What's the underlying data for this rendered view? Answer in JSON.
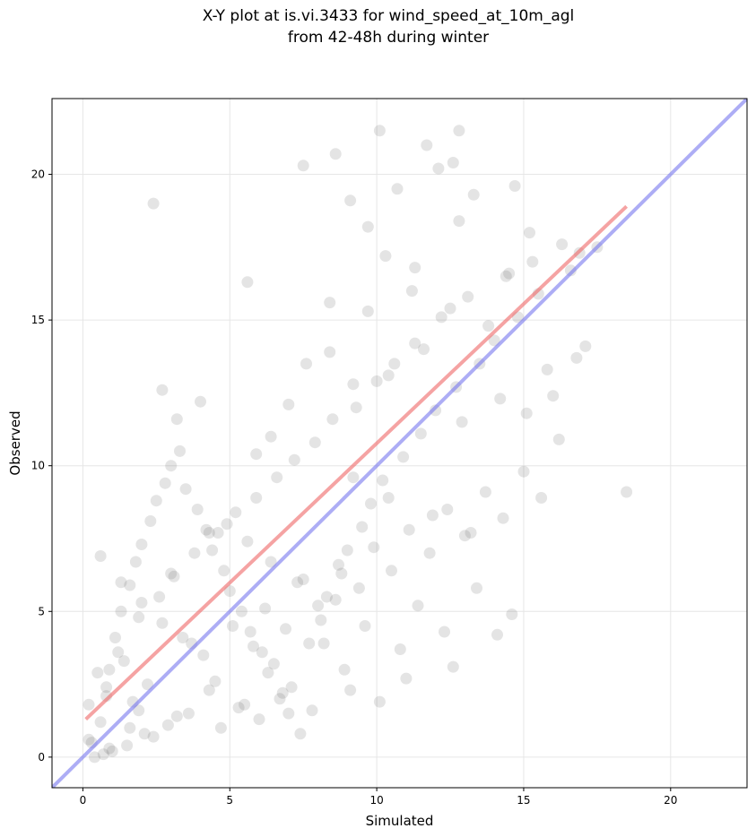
{
  "chart_data": {
    "type": "scatter",
    "title": [
      "X-Y plot at is.vi.3433 for wind_speed_at_10m_agl",
      "from 42-48h during winter"
    ],
    "xlabel": "Simulated",
    "ylabel": "Observed",
    "xlim": [
      -1.05,
      22.6
    ],
    "ylim": [
      -1.05,
      22.6
    ],
    "xticks": [
      0,
      5,
      10,
      15,
      20
    ],
    "yticks": [
      0,
      5,
      10,
      15,
      20
    ],
    "grid": true,
    "point_color": "#555555",
    "lines": [
      {
        "role": "regression",
        "color": "#ee6666",
        "x": [
          0.1,
          18.5
        ],
        "y": [
          1.3,
          18.9
        ]
      },
      {
        "role": "one-to-one",
        "color": "#7777ee",
        "x": [
          -1.05,
          22.6
        ],
        "y": [
          -1.05,
          22.6
        ]
      }
    ],
    "points": {
      "x": [
        2.4,
        12.8,
        11.7,
        12.6,
        8.6,
        7.5,
        10.1,
        9.1,
        12.1,
        13.3,
        17.5,
        15.3,
        9.7,
        10.7,
        5.6,
        8.4,
        10.3,
        11.2,
        12.5,
        13.8,
        14.4,
        16.0,
        16.8,
        2.7,
        3.2,
        4.0,
        6.4,
        7.6,
        9.2,
        10.4,
        11.6,
        12.9,
        14.2,
        15.8,
        17.1,
        18.5,
        4.3,
        3.6,
        2.1,
        1.5,
        1.0,
        0.7,
        0.3,
        0.2,
        0.5,
        1.2,
        1.9,
        2.6,
        3.1,
        3.8,
        4.6,
        5.2,
        5.9,
        6.6,
        7.2,
        7.9,
        8.5,
        9.3,
        10.0,
        10.6,
        11.3,
        12.2,
        13.1,
        14.5,
        15.2,
        16.3,
        0.4,
        0.6,
        0.8,
        0.9,
        1.1,
        1.3,
        1.6,
        1.8,
        2.0,
        2.3,
        2.5,
        2.8,
        3.0,
        3.3,
        3.5,
        3.9,
        4.2,
        4.4,
        4.8,
        5.0,
        5.4,
        5.7,
        6.1,
        6.3,
        6.8,
        7.0,
        7.4,
        7.7,
        8.1,
        8.3,
        8.8,
        9.0,
        9.5,
        9.8,
        10.2,
        10.9,
        11.5,
        12.0,
        12.7,
        13.5,
        14.0,
        14.8,
        15.5,
        16.6,
        1.4,
        2.2,
        3.4,
        4.1,
        5.1,
        5.8,
        6.2,
        6.9,
        7.3,
        8.0,
        8.7,
        9.4,
        9.9,
        10.5,
        11.1,
        11.8,
        12.4,
        13.0,
        13.7,
        14.3,
        15.0,
        15.6,
        1.7,
        2.9,
        4.5,
        5.5,
        6.5,
        7.1,
        8.2,
        8.9,
        9.6,
        10.8,
        11.4,
        12.3,
        13.4,
        14.6,
        0.2,
        0.9,
        1.6,
        2.4,
        3.2,
        4.7,
        5.3,
        6.0,
        6.7,
        7.8,
        9.1,
        10.1,
        11.0,
        12.6,
        14.1,
        0.6,
        1.3,
        2.0,
        2.7,
        3.7,
        4.9,
        5.6,
        6.4,
        7.5,
        8.6,
        9.2,
        10.4,
        11.9,
        13.2,
        15.1,
        16.2,
        0.8,
        1.9,
        3.0,
        4.3,
        5.9,
        7.0,
        8.4,
        9.7,
        11.3,
        12.8,
        14.7,
        16.9
      ],
      "y": [
        19.0,
        21.5,
        21.0,
        20.4,
        20.7,
        20.3,
        21.5,
        19.1,
        20.2,
        19.3,
        17.5,
        17.0,
        18.2,
        19.5,
        16.3,
        15.6,
        17.2,
        16.0,
        15.4,
        14.8,
        16.5,
        12.4,
        13.7,
        12.6,
        11.6,
        12.2,
        11.0,
        13.5,
        12.8,
        13.1,
        14.0,
        11.5,
        12.3,
        13.3,
        14.1,
        9.1,
        2.3,
        1.5,
        0.8,
        0.4,
        0.2,
        0.1,
        0.5,
        1.8,
        2.9,
        3.6,
        4.8,
        5.5,
        6.2,
        7.0,
        7.7,
        8.4,
        8.9,
        9.6,
        10.2,
        10.8,
        11.6,
        12.0,
        12.9,
        13.5,
        14.2,
        15.1,
        15.8,
        16.6,
        18.0,
        17.6,
        0.0,
        1.2,
        2.4,
        3.0,
        4.1,
        5.0,
        5.9,
        6.7,
        7.3,
        8.1,
        8.8,
        9.4,
        10.0,
        10.5,
        9.2,
        8.5,
        7.8,
        7.1,
        6.4,
        5.7,
        5.0,
        4.3,
        3.6,
        2.9,
        2.2,
        1.5,
        0.8,
        3.9,
        4.7,
        5.5,
        6.3,
        7.1,
        7.9,
        8.7,
        9.5,
        10.3,
        11.1,
        11.9,
        12.7,
        13.5,
        14.3,
        15.1,
        15.9,
        16.7,
        3.3,
        2.5,
        4.1,
        3.5,
        4.5,
        3.8,
        5.1,
        4.4,
        6.0,
        5.2,
        6.6,
        5.8,
        7.2,
        6.4,
        7.8,
        7.0,
        8.5,
        7.6,
        9.1,
        8.2,
        9.8,
        8.9,
        1.9,
        1.1,
        2.6,
        1.8,
        3.2,
        2.4,
        3.9,
        3.0,
        4.5,
        3.7,
        5.2,
        4.3,
        5.8,
        4.9,
        0.6,
        0.3,
        1.0,
        0.7,
        1.4,
        1.0,
        1.7,
        1.3,
        2.0,
        1.6,
        2.3,
        1.9,
        2.7,
        3.1,
        4.2,
        6.9,
        6.0,
        5.3,
        4.6,
        3.9,
        8.0,
        7.4,
        6.7,
        6.1,
        5.4,
        9.6,
        8.9,
        8.3,
        7.7,
        11.8,
        10.9,
        2.1,
        1.6,
        6.3,
        7.7,
        10.4,
        12.1,
        13.9,
        15.3,
        16.8,
        18.4,
        19.6,
        17.3
      ]
    }
  }
}
